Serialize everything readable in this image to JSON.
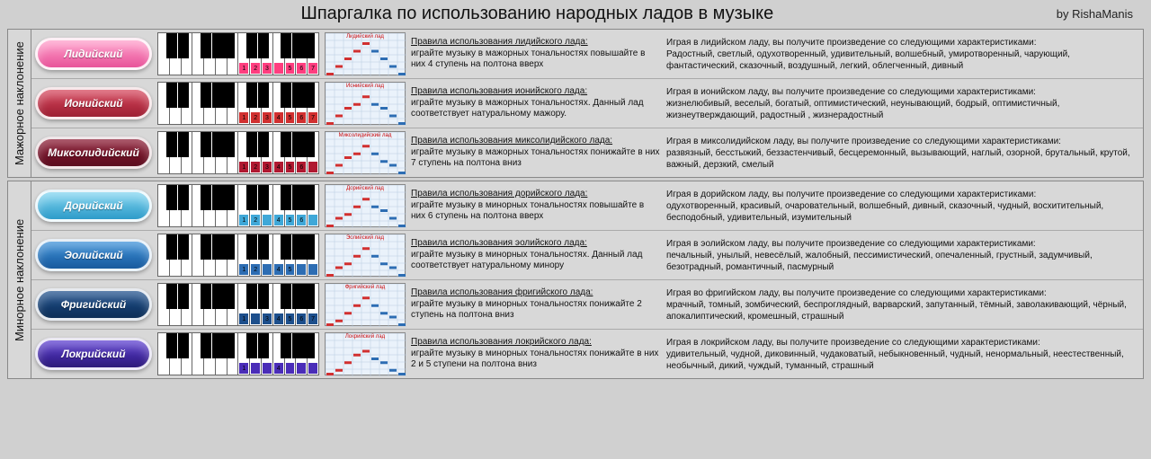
{
  "title": "Шпаргалка по использованию народных ладов в музыке",
  "author": "by RishaManis",
  "groups": [
    {
      "label": "Мажорное наклонение",
      "rows": [
        {
          "name": "Лидийский",
          "pill_bg": "linear-gradient(#ff9cc9,#e8549a)",
          "highlight_color": "#ff3e7f",
          "highlighted_whites": [
            7,
            8,
            9,
            10,
            11,
            12,
            13
          ],
          "numbers": [
            "1",
            "2",
            "3",
            "",
            "5",
            "6",
            "7"
          ],
          "rules_title": "Правила использования лидийского лада:",
          "rules_body": "играйте музыку в мажорных тональностях повышайте в них 4 ступень на полтона вверх",
          "desc_intro": "Играя в лидийском ладу, вы получите произведение со следующими характеристиками:",
          "desc_body": "Радостный, светлый, одухотворенный, удивительный, волшебный, умиротворенный, чарующий, фантастический, сказочный, воздушный, легкий, облегченный, дивный",
          "chart_label": "Лидийский лад",
          "shape": [
            0,
            1,
            2,
            3,
            4,
            3,
            2,
            1,
            0
          ]
        },
        {
          "name": "Ионийский",
          "pill_bg": "linear-gradient(#d6445a,#9d1f33)",
          "highlight_color": "#d13030",
          "highlighted_whites": [
            7,
            8,
            9,
            10,
            11,
            12,
            13
          ],
          "numbers": [
            "1",
            "2",
            "3",
            "4",
            "5",
            "6",
            "7"
          ],
          "rules_title": "Правила использования ионийского лада:",
          "rules_body": "играйте музыку в мажорных тональностях. Данный лад соответствует натуральному мажору.",
          "desc_intro": "Играя в ионийском ладу, вы получите произведение со следующими характеристиками:",
          "desc_body": "жизнелюбивый, веселый, богатый, оптимистический, неунывающий, бодрый, оптимистичный, жизнеутверждающий, радостный ,   жизнерадостный",
          "chart_label": "Ионийский лад",
          "shape": [
            0,
            1,
            2,
            2.5,
            3.5,
            2.5,
            2,
            1,
            0
          ]
        },
        {
          "name": "Миксолидийский",
          "pill_bg": "linear-gradient(#8a1730,#5c0d1f)",
          "highlight_color": "#b01830",
          "highlighted_whites": [
            7,
            8,
            9,
            10,
            11,
            12,
            13
          ],
          "numbers": [
            "1",
            "2",
            "3",
            "4",
            "5",
            "6",
            ""
          ],
          "rules_title": "Правила использования миксолидийского лада:",
          "rules_body": "играйте музыку в мажорных тональностях понижайте в них 7 ступень на полтона вниз",
          "desc_intro": "Играя в миксолидийском ладу, вы получите произведение со следующими характеристиками:",
          "desc_body": "развязный, бесстыжий, беззастенчивый, бесцеремонный, вызывающий,  наглый, озорной, брутальный, крутой, важный, дерзкий, смелый",
          "chart_label": "Миксолидийский лад",
          "shape": [
            0,
            1,
            2,
            2.5,
            3.5,
            2.5,
            1.5,
            1,
            0
          ]
        }
      ]
    },
    {
      "label": "Минорное наклонение",
      "rows": [
        {
          "name": "Дорийский",
          "pill_bg": "linear-gradient(#7fd4f0,#2d9bc9)",
          "highlight_color": "#3fa8d8",
          "highlighted_whites": [
            7,
            8,
            9,
            10,
            11,
            12,
            13
          ],
          "numbers": [
            "1",
            "2",
            "",
            "4",
            "5",
            "6",
            ""
          ],
          "rules_title": "Правила использования дорийского лада:",
          "rules_body": "играйте музыку в минорных тональностях повышайте в них 6 ступень на полтона вверх",
          "desc_intro": "Играя в дорийском ладу, вы получите произведение со следующими характеристиками:",
          "desc_body": "одухотворенный, красивый, очаровательный, волшебный, дивный, сказочный, чудный, восхитительный, бесподобный, удивительный, изумительный",
          "chart_label": "Дорийский лад",
          "shape": [
            0,
            1,
            1.5,
            2.5,
            3.5,
            2.5,
            2,
            1,
            0
          ]
        },
        {
          "name": "Эолийский",
          "pill_bg": "linear-gradient(#3a8fd8,#185a9d)",
          "highlight_color": "#2d6db3",
          "highlighted_whites": [
            7,
            8,
            9,
            10,
            11,
            12,
            13
          ],
          "numbers": [
            "1",
            "2",
            "",
            "4",
            "5",
            "",
            ""
          ],
          "rules_title": "Правила использования эолийского лада:",
          "rules_body": "играйте музыку в минорных тональностях. Данный лад соответствует натуральному минору",
          "desc_intro": "Играя в эолийском ладу, вы получите произведение со следующими характеристиками:",
          "desc_body": "печальный, унылый, невесёлый, жалобный, пессимистический,  опечаленный, грустный, задумчивый, безотрадный, романтичный, пасмурный",
          "chart_label": "Эолийский лад",
          "shape": [
            0,
            1,
            1.5,
            2.5,
            3.5,
            2.5,
            1.5,
            1,
            0
          ]
        },
        {
          "name": "Фригийский",
          "pill_bg": "linear-gradient(#1d4f8c,#0d2e57)",
          "highlight_color": "#1d4f8c",
          "highlighted_whites": [
            7,
            8,
            9,
            10,
            11,
            12,
            13
          ],
          "numbers": [
            "1",
            "",
            "3",
            "4",
            "5",
            "6",
            "7"
          ],
          "rules_title": "Правила использования фригийского лада:",
          "rules_body": "играйте музыку в минорных тональностях понижайте 2 ступень на полтона вниз",
          "desc_intro": "Играя во фригийском ладу, вы получите произведение со следующими характеристиками:",
          "desc_body": "мрачный, томный, зомбический, беспроглядный, варварский, запутанный, тёмный, заволакивающий, чёрный, апокалиптический, кромешный,  страшный",
          "chart_label": "Фригийский лад",
          "shape": [
            0,
            0.5,
            1.5,
            2.5,
            3.5,
            2.5,
            1.5,
            1,
            0
          ]
        },
        {
          "name": "Локрийский",
          "pill_bg": "linear-gradient(#5a3bd1,#2d1a7a)",
          "highlight_color": "#4a2db8",
          "highlighted_whites": [
            7,
            8,
            9,
            10,
            11,
            12,
            13
          ],
          "numbers": [
            "1",
            "",
            "",
            "4",
            "",
            "",
            ""
          ],
          "rules_title": "Правила использования локрийского лада:",
          "rules_body": "играйте музыку в минорных тональностях понижайте в них 2 и 5 ступени на полтона вниз",
          "desc_intro": "Играя в локрийском ладу, вы получите произведение со следующими характеристиками:",
          "desc_body": "удивительный, чудной, диковинный, чудаковатый, небыкновенный, чудный, ненормальный, неестественный, необычный, дикий, чуждый, туманный,  страшный",
          "chart_label": "Локрийский лад",
          "shape": [
            0,
            0.5,
            1.5,
            2.5,
            3,
            2,
            1.5,
            0.5,
            0
          ]
        }
      ]
    }
  ],
  "keyboard": {
    "white_count": 14,
    "black_positions_pct": [
      5,
      12.1,
      26.4,
      33.5,
      40.6,
      55,
      62.1,
      76.4,
      83.5,
      90.6
    ]
  },
  "chart_style": {
    "grid_color": "#b8cce0",
    "up_color": "#d13030",
    "down_color": "#2d6db3",
    "bg": "#eaf2fb"
  }
}
